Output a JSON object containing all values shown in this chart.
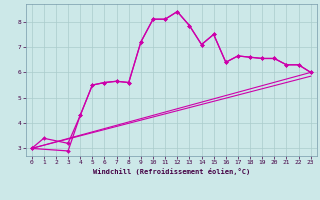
{
  "xlabel": "Windchill (Refroidissement éolien,°C)",
  "bg_color": "#cce8e8",
  "grid_color": "#aacccc",
  "line_color": "#cc00aa",
  "xlim": [
    -0.5,
    23.5
  ],
  "ylim": [
    2.7,
    8.7
  ],
  "xticks": [
    0,
    1,
    2,
    3,
    4,
    5,
    6,
    7,
    8,
    9,
    10,
    11,
    12,
    13,
    14,
    15,
    16,
    17,
    18,
    19,
    20,
    21,
    22,
    23
  ],
  "yticks": [
    3,
    4,
    5,
    6,
    7,
    8
  ],
  "curve1_x": [
    0,
    1,
    3,
    4,
    5,
    6,
    7,
    8,
    9,
    10,
    11,
    12,
    13,
    14,
    15,
    16,
    17,
    18,
    19,
    20,
    21,
    22,
    23
  ],
  "curve1_y": [
    3.0,
    3.4,
    3.2,
    4.3,
    5.5,
    5.6,
    5.65,
    5.6,
    7.2,
    8.1,
    8.1,
    8.4,
    7.85,
    7.1,
    7.5,
    6.4,
    6.65,
    6.6,
    6.55,
    6.55,
    6.3,
    6.3,
    6.0
  ],
  "curve2_x": [
    0,
    3,
    4,
    5,
    6,
    7,
    8,
    9,
    10,
    11,
    12,
    13,
    14,
    15,
    16,
    17,
    18,
    19,
    20,
    21,
    22,
    23
  ],
  "curve2_y": [
    3.0,
    2.9,
    4.3,
    5.5,
    5.6,
    5.65,
    5.6,
    7.2,
    8.1,
    8.1,
    8.4,
    7.85,
    7.1,
    7.5,
    6.4,
    6.65,
    6.6,
    6.55,
    6.55,
    6.3,
    6.3,
    6.0
  ],
  "line1_x": [
    0,
    23
  ],
  "line1_y": [
    3.0,
    6.0
  ],
  "line2_x": [
    0,
    23
  ],
  "line2_y": [
    3.0,
    6.0
  ]
}
